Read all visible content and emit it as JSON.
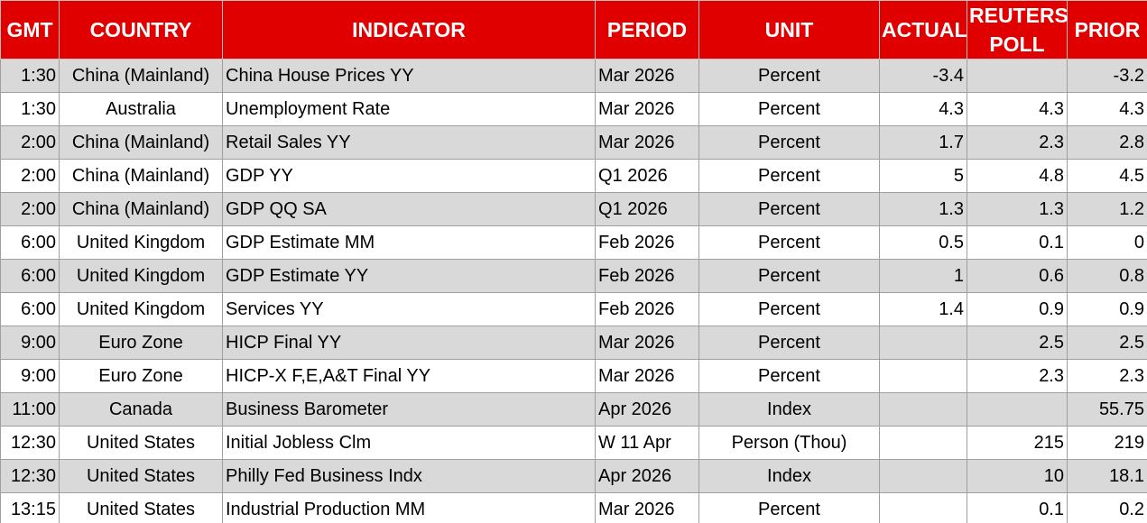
{
  "headers": {
    "gmt": "GMT",
    "country": "COUNTRY",
    "indicator": "INDICATOR",
    "period": "PERIOD",
    "unit": "UNIT",
    "actual": "ACTUAL",
    "poll_line1": "REUTERS",
    "poll_line2": "POLL",
    "prior": "PRIOR"
  },
  "colors": {
    "header_bg": "#e00000",
    "header_text": "#ffffff",
    "row_alt": "#d9d9d9",
    "row_plain": "#ffffff"
  },
  "rows": [
    {
      "gmt": "1:30",
      "country": "China (Mainland)",
      "indicator": "China House Prices YY",
      "period": "Mar 2026",
      "unit": "Percent",
      "actual": "-3.4",
      "poll": "",
      "prior": "-3.2"
    },
    {
      "gmt": "1:30",
      "country": "Australia",
      "indicator": "Unemployment Rate",
      "period": "Mar 2026",
      "unit": "Percent",
      "actual": "4.3",
      "poll": "4.3",
      "prior": "4.3"
    },
    {
      "gmt": "2:00",
      "country": "China (Mainland)",
      "indicator": "Retail Sales YY",
      "period": "Mar 2026",
      "unit": "Percent",
      "actual": "1.7",
      "poll": "2.3",
      "prior": "2.8"
    },
    {
      "gmt": "2:00",
      "country": "China (Mainland)",
      "indicator": "GDP YY",
      "period": "Q1 2026",
      "unit": "Percent",
      "actual": "5",
      "poll": "4.8",
      "prior": "4.5"
    },
    {
      "gmt": "2:00",
      "country": "China (Mainland)",
      "indicator": "GDP QQ SA",
      "period": "Q1 2026",
      "unit": "Percent",
      "actual": "1.3",
      "poll": "1.3",
      "prior": "1.2"
    },
    {
      "gmt": "6:00",
      "country": "United Kingdom",
      "indicator": "GDP Estimate MM",
      "period": "Feb 2026",
      "unit": "Percent",
      "actual": "0.5",
      "poll": "0.1",
      "prior": "0"
    },
    {
      "gmt": "6:00",
      "country": "United Kingdom",
      "indicator": "GDP Estimate YY",
      "period": "Feb 2026",
      "unit": "Percent",
      "actual": "1",
      "poll": "0.6",
      "prior": "0.8"
    },
    {
      "gmt": "6:00",
      "country": "United Kingdom",
      "indicator": "Services YY",
      "period": "Feb 2026",
      "unit": "Percent",
      "actual": "1.4",
      "poll": "0.9",
      "prior": "0.9"
    },
    {
      "gmt": "9:00",
      "country": "Euro Zone",
      "indicator": "HICP Final YY",
      "period": "Mar 2026",
      "unit": "Percent",
      "actual": "",
      "poll": "2.5",
      "prior": "2.5"
    },
    {
      "gmt": "9:00",
      "country": "Euro Zone",
      "indicator": "HICP-X F,E,A&T Final YY",
      "period": "Mar 2026",
      "unit": "Percent",
      "actual": "",
      "poll": "2.3",
      "prior": "2.3"
    },
    {
      "gmt": "11:00",
      "country": "Canada",
      "indicator": "Business Barometer",
      "period": "Apr 2026",
      "unit": "Index",
      "actual": "",
      "poll": "",
      "prior": "55.75"
    },
    {
      "gmt": "12:30",
      "country": "United States",
      "indicator": "Initial Jobless Clm",
      "period": "W 11 Apr",
      "unit": "Person (Thou)",
      "actual": "",
      "poll": "215",
      "prior": "219"
    },
    {
      "gmt": "12:30",
      "country": "United States",
      "indicator": "Philly Fed Business Indx",
      "period": "Apr 2026",
      "unit": "Index",
      "actual": "",
      "poll": "10",
      "prior": "18.1"
    },
    {
      "gmt": "13:15",
      "country": "United States",
      "indicator": "Industrial Production MM",
      "period": "Mar 2026",
      "unit": "Percent",
      "actual": "",
      "poll": "0.1",
      "prior": "0.2"
    }
  ]
}
